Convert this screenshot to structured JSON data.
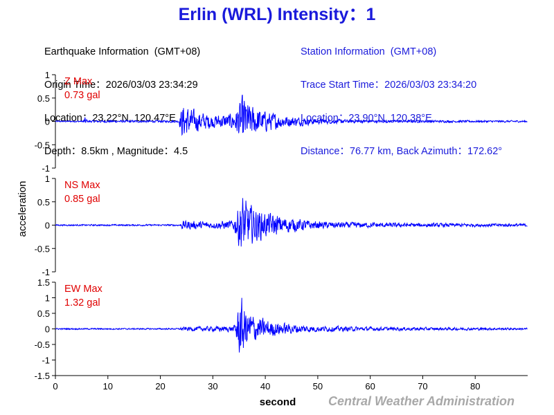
{
  "header": {
    "title": "Erlin (WRL) Intensity：1",
    "earthquake": {
      "heading": "Earthquake Information  (GMT+08)",
      "origin_time": "Origin Time：2026/03/03 23:34:29",
      "location": "Location：23.22°N, 120.47°E",
      "depth_magnitude": "Depth：8.5km , Magnitude：4.5"
    },
    "station": {
      "heading": "Station Information  (GMT+08)",
      "trace_start": "Trace Start Time：2026/03/03 23:34:20",
      "location": "Location：23.90°N, 120.38°E",
      "distance": "Distance：76.77 km, Back Azimuth：172.62°"
    }
  },
  "chart_data": {
    "type": "line",
    "xlabel": "second",
    "ylabel": "acceleration",
    "xlim": [
      0,
      90
    ],
    "x_ticks": [
      "0",
      "10",
      "20",
      "30",
      "40",
      "50",
      "60",
      "70",
      "80"
    ],
    "grid": false,
    "line_color": "#0000ff",
    "panels": [
      {
        "name": "Z",
        "max_label": "Z Max",
        "max_value": "0.73 gal",
        "ylim": [
          -1,
          1
        ],
        "y_ticks": [
          "1",
          "0.5",
          "0",
          "-0.5",
          "-1"
        ],
        "envelope": [
          [
            0,
            0.02
          ],
          [
            5.2,
            0.02
          ],
          [
            5.6,
            0.12
          ],
          [
            6.2,
            0.03
          ],
          [
            23.5,
            0.03
          ],
          [
            24.2,
            0.5
          ],
          [
            26,
            0.32
          ],
          [
            30,
            0.18
          ],
          [
            34,
            0.22
          ],
          [
            35.8,
            0.73
          ],
          [
            37,
            0.45
          ],
          [
            40,
            0.28
          ],
          [
            44,
            0.16
          ],
          [
            50,
            0.07
          ],
          [
            60,
            0.035
          ],
          [
            90,
            0.025
          ]
        ]
      },
      {
        "name": "NS",
        "max_label": "NS Max",
        "max_value": "0.85 gal",
        "ylim": [
          -1,
          1
        ],
        "y_ticks": [
          "1",
          "0.5",
          "0",
          "-0.5",
          "-1"
        ],
        "envelope": [
          [
            0,
            0.02
          ],
          [
            23.8,
            0.025
          ],
          [
            24.2,
            0.13
          ],
          [
            30,
            0.09
          ],
          [
            34,
            0.14
          ],
          [
            35.5,
            0.85
          ],
          [
            37,
            0.55
          ],
          [
            40,
            0.35
          ],
          [
            44,
            0.22
          ],
          [
            50,
            0.1
          ],
          [
            65,
            0.06
          ],
          [
            90,
            0.04
          ]
        ]
      },
      {
        "name": "EW",
        "max_label": "EW Max",
        "max_value": "1.32 gal",
        "ylim": [
          -1.5,
          1.5
        ],
        "y_ticks": [
          "1.5",
          "1",
          "0.5",
          "0",
          "-0.5",
          "-1",
          "-1.5"
        ],
        "envelope": [
          [
            0,
            0.03
          ],
          [
            23.5,
            0.03
          ],
          [
            24.2,
            0.08
          ],
          [
            34,
            0.12
          ],
          [
            35.2,
            1.32
          ],
          [
            36.5,
            0.75
          ],
          [
            40,
            0.38
          ],
          [
            44,
            0.22
          ],
          [
            50,
            0.12
          ],
          [
            60,
            0.08
          ],
          [
            90,
            0.04
          ]
        ]
      }
    ]
  },
  "footer": {
    "credit": "Central Weather Administration"
  }
}
